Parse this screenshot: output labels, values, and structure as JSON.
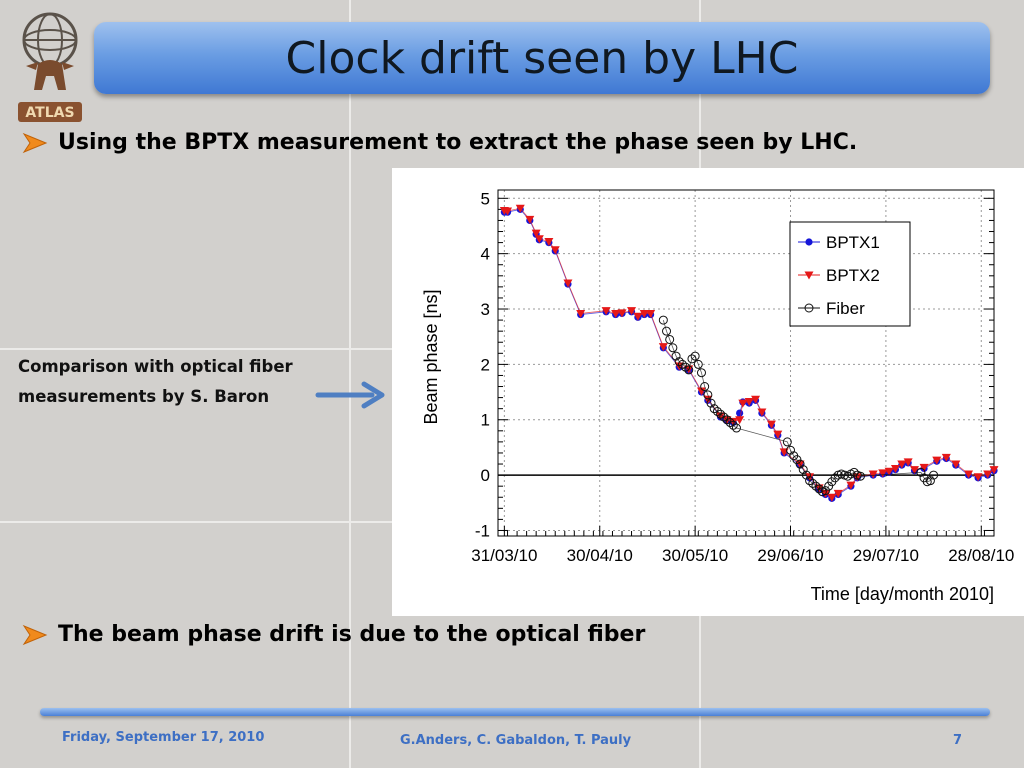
{
  "slide": {
    "title": "Clock drift seen by LHC",
    "bullet1": "Using the BPTX measurement to extract the phase seen by LHC.",
    "bullet2": "The beam phase drift is due to the optical fiber",
    "side_note_line1": "Comparison with optical fiber",
    "side_note_line2": "measurements by S. Baron",
    "logo_text": "ATLAS",
    "accent_color": "#3f78d3",
    "bullet_icon": "arrow-bullet-icon"
  },
  "footer": {
    "date": "Friday, September 17, 2010",
    "authors": "G.Anders, C. Gabaldon, T. Pauly",
    "page": "7"
  },
  "chart_data": {
    "type": "scatter",
    "ylabel": "Beam phase [ns]",
    "xlabel": "Time [day/month 2010]",
    "ylim": [
      -1.1,
      5.15
    ],
    "xlim": [
      "2010-03-29",
      "2010-09-01"
    ],
    "yticks": [
      -1,
      0,
      1,
      2,
      3,
      4,
      5
    ],
    "xticks": [
      "31/03/10",
      "30/04/10",
      "30/05/10",
      "29/06/10",
      "29/07/10",
      "28/08/10"
    ],
    "xtick_dates": [
      "2010-03-31",
      "2010-04-30",
      "2010-05-30",
      "2010-06-29",
      "2010-07-29",
      "2010-08-28"
    ],
    "grid": true,
    "reference_line_y": 0,
    "legend_position": "top-right",
    "series": [
      {
        "name": "BPTX1",
        "marker": "circle-filled",
        "color": "#1515d8",
        "x": [
          "2010-03-31",
          "2010-04-01",
          "2010-04-05",
          "2010-04-08",
          "2010-04-10",
          "2010-04-11",
          "2010-04-14",
          "2010-04-16",
          "2010-04-20",
          "2010-04-24",
          "2010-05-02",
          "2010-05-05",
          "2010-05-07",
          "2010-05-10",
          "2010-05-12",
          "2010-05-14",
          "2010-05-16",
          "2010-05-20",
          "2010-05-25",
          "2010-05-28",
          "2010-06-01",
          "2010-06-03",
          "2010-06-07",
          "2010-06-09",
          "2010-06-11",
          "2010-06-13",
          "2010-06-14",
          "2010-06-16",
          "2010-06-18",
          "2010-06-20",
          "2010-06-23",
          "2010-06-25",
          "2010-06-27",
          "2010-07-02",
          "2010-07-05",
          "2010-07-08",
          "2010-07-10",
          "2010-07-12",
          "2010-07-14",
          "2010-07-18",
          "2010-07-20",
          "2010-07-25",
          "2010-07-28",
          "2010-07-30",
          "2010-08-01",
          "2010-08-03",
          "2010-08-05",
          "2010-08-07",
          "2010-08-10",
          "2010-08-14",
          "2010-08-17",
          "2010-08-20",
          "2010-08-24",
          "2010-08-27",
          "2010-08-30",
          "2010-09-01"
        ],
        "y": [
          4.75,
          4.75,
          4.8,
          4.6,
          4.35,
          4.25,
          4.2,
          4.05,
          3.45,
          2.9,
          2.95,
          2.9,
          2.92,
          2.95,
          2.85,
          2.9,
          2.9,
          2.3,
          1.95,
          1.9,
          1.5,
          1.35,
          1.05,
          0.98,
          0.95,
          1.12,
          1.32,
          1.3,
          1.35,
          1.12,
          0.9,
          0.72,
          0.4,
          0.18,
          -0.05,
          -0.25,
          -0.35,
          -0.42,
          -0.35,
          -0.2,
          -0.05,
          0.0,
          0.02,
          0.05,
          0.1,
          0.18,
          0.22,
          0.08,
          0.12,
          0.25,
          0.3,
          0.18,
          0.0,
          -0.05,
          0.0,
          0.08
        ]
      },
      {
        "name": "BPTX2",
        "marker": "triangle-down",
        "color": "#e51818",
        "x": [
          "2010-03-31",
          "2010-04-01",
          "2010-04-05",
          "2010-04-08",
          "2010-04-10",
          "2010-04-11",
          "2010-04-14",
          "2010-04-16",
          "2010-04-20",
          "2010-04-24",
          "2010-05-02",
          "2010-05-05",
          "2010-05-07",
          "2010-05-10",
          "2010-05-12",
          "2010-05-14",
          "2010-05-16",
          "2010-05-20",
          "2010-05-25",
          "2010-05-28",
          "2010-06-01",
          "2010-06-03",
          "2010-06-07",
          "2010-06-09",
          "2010-06-11",
          "2010-06-13",
          "2010-06-14",
          "2010-06-16",
          "2010-06-18",
          "2010-06-20",
          "2010-06-23",
          "2010-06-25",
          "2010-06-27",
          "2010-07-02",
          "2010-07-05",
          "2010-07-08",
          "2010-07-10",
          "2010-07-12",
          "2010-07-14",
          "2010-07-18",
          "2010-07-20",
          "2010-07-25",
          "2010-07-28",
          "2010-07-30",
          "2010-08-01",
          "2010-08-03",
          "2010-08-05",
          "2010-08-07",
          "2010-08-10",
          "2010-08-14",
          "2010-08-17",
          "2010-08-20",
          "2010-08-24",
          "2010-08-27",
          "2010-08-30",
          "2010-09-01"
        ],
        "y": [
          4.78,
          4.77,
          4.82,
          4.62,
          4.37,
          4.27,
          4.22,
          4.07,
          3.47,
          2.92,
          2.97,
          2.92,
          2.93,
          2.97,
          2.87,
          2.92,
          2.92,
          2.32,
          1.97,
          1.92,
          1.52,
          1.37,
          1.07,
          1.0,
          0.97,
          1.0,
          1.3,
          1.33,
          1.37,
          1.14,
          0.92,
          0.74,
          0.42,
          0.2,
          -0.03,
          -0.23,
          -0.33,
          -0.4,
          -0.33,
          -0.18,
          -0.03,
          0.02,
          0.04,
          0.07,
          0.12,
          0.2,
          0.24,
          0.1,
          0.14,
          0.27,
          0.32,
          0.2,
          0.02,
          -0.03,
          0.02,
          0.1
        ]
      },
      {
        "name": "Fiber",
        "marker": "circle-open",
        "color": "#111111",
        "x": [
          "2010-05-20",
          "2010-05-21",
          "2010-05-22",
          "2010-05-23",
          "2010-05-24",
          "2010-05-25",
          "2010-05-26",
          "2010-05-27",
          "2010-05-28",
          "2010-05-29",
          "2010-05-30",
          "2010-05-31",
          "2010-06-01",
          "2010-06-02",
          "2010-06-03",
          "2010-06-04",
          "2010-06-05",
          "2010-06-06",
          "2010-06-07",
          "2010-06-08",
          "2010-06-09",
          "2010-06-10",
          "2010-06-11",
          "2010-06-12",
          "2010-06-28",
          "2010-06-29",
          "2010-06-30",
          "2010-07-01",
          "2010-07-02",
          "2010-07-03",
          "2010-07-04",
          "2010-07-05",
          "2010-07-06",
          "2010-07-07",
          "2010-07-08",
          "2010-07-09",
          "2010-07-10",
          "2010-07-11",
          "2010-07-12",
          "2010-07-13",
          "2010-07-14",
          "2010-07-15",
          "2010-07-16",
          "2010-07-17",
          "2010-07-18",
          "2010-07-19",
          "2010-07-20",
          "2010-07-21",
          "2010-08-09",
          "2010-08-10",
          "2010-08-11",
          "2010-08-12",
          "2010-08-13"
        ],
        "y": [
          2.8,
          2.6,
          2.45,
          2.3,
          2.15,
          2.05,
          2.0,
          1.95,
          1.9,
          2.1,
          2.15,
          2.0,
          1.85,
          1.6,
          1.45,
          1.3,
          1.2,
          1.15,
          1.1,
          1.05,
          1.0,
          0.95,
          0.9,
          0.85,
          0.6,
          0.45,
          0.35,
          0.28,
          0.2,
          0.1,
          0.0,
          -0.1,
          -0.15,
          -0.2,
          -0.25,
          -0.3,
          -0.28,
          -0.2,
          -0.12,
          -0.05,
          0.0,
          0.02,
          0.0,
          -0.02,
          0.02,
          0.05,
          0.0,
          -0.02,
          0.05,
          -0.05,
          -0.12,
          -0.1,
          0.0
        ]
      }
    ]
  }
}
